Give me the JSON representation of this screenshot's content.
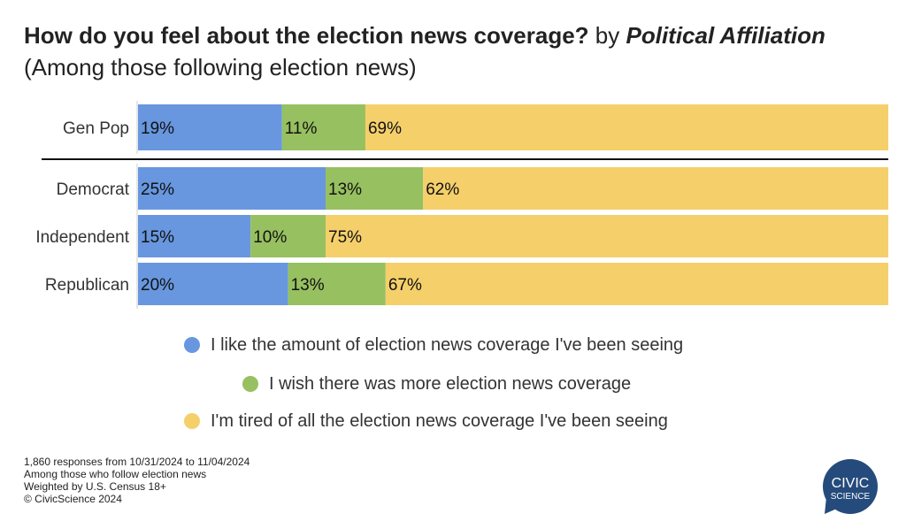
{
  "title": {
    "main": "How do you feel about the election news coverage?",
    "by": "by",
    "group": "Political Affiliation",
    "subtitle": "(Among those following election news)"
  },
  "chart_data": {
    "type": "bar",
    "orientation": "horizontal",
    "stacked": true,
    "categories": [
      "Gen Pop",
      "Democrat",
      "Independent",
      "Republican"
    ],
    "series": [
      {
        "name": "I like the amount of election news coverage I've been seeing",
        "color": "#6897df",
        "values": [
          19,
          25,
          15,
          20
        ]
      },
      {
        "name": "I wish there was more election news coverage",
        "color": "#97c060",
        "values": [
          11,
          13,
          10,
          13
        ]
      },
      {
        "name": "I'm tired of all the election news coverage I've been seeing",
        "color": "#f5cf6a",
        "values": [
          69,
          62,
          75,
          67
        ]
      }
    ],
    "value_suffix": "%",
    "legend_position": "bottom",
    "grid": false
  },
  "footer": [
    "1,860 responses from 10/31/2024 to 11/04/2024",
    "Among those who follow election news",
    "Weighted by U.S. Census 18+",
    "© CivicScience 2024"
  ],
  "logo": {
    "line1": "CIVIC",
    "line2": "SCIENCE",
    "color": "#244b7c"
  }
}
